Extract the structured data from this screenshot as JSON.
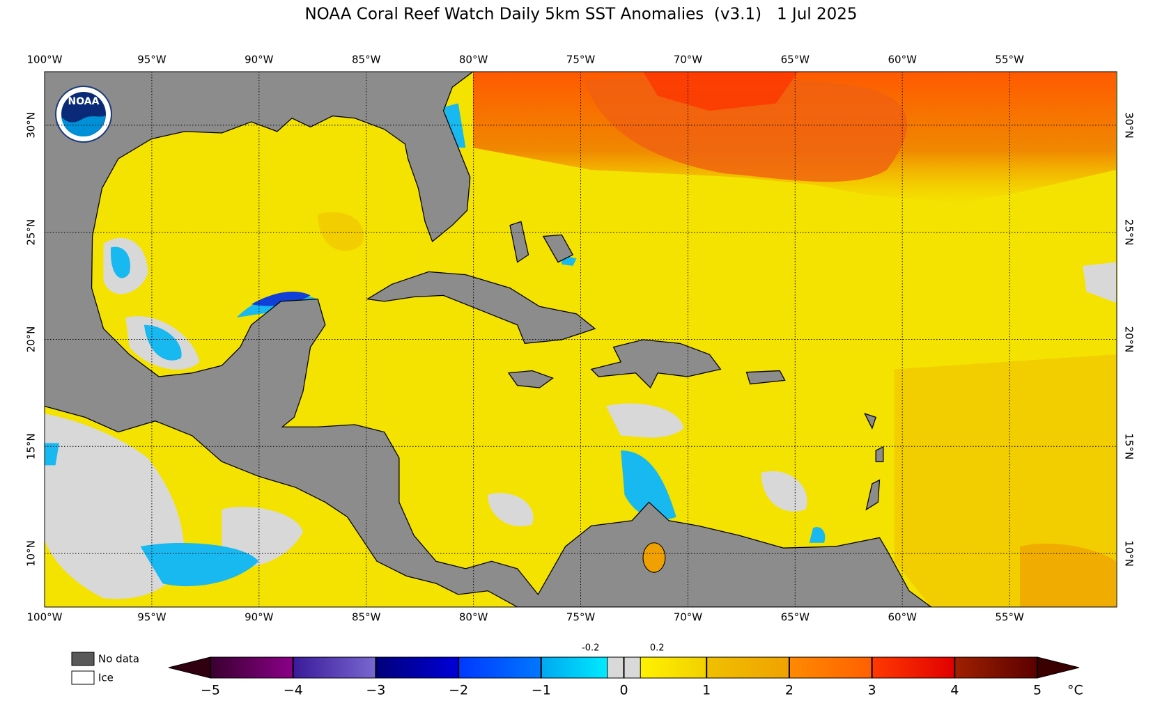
{
  "chart_data": {
    "type": "map",
    "title": "NOAA Coral Reef Watch Daily 5km SST Anomalies  (v3.1)   1 Jul 2025",
    "xlim": [
      -100,
      -50
    ],
    "ylim": [
      7.5,
      32.5
    ],
    "xticks": [
      {
        "value": -100,
        "label": "100°W"
      },
      {
        "value": -95,
        "label": "95°W"
      },
      {
        "value": -90,
        "label": "90°W"
      },
      {
        "value": -85,
        "label": "85°W"
      },
      {
        "value": -80,
        "label": "80°W"
      },
      {
        "value": -75,
        "label": "75°W"
      },
      {
        "value": -70,
        "label": "70°W"
      },
      {
        "value": -65,
        "label": "65°W"
      },
      {
        "value": -60,
        "label": "60°W"
      },
      {
        "value": -55,
        "label": "55°W"
      }
    ],
    "yticks": [
      {
        "value": 10,
        "label": "10°N"
      },
      {
        "value": 15,
        "label": "15°N"
      },
      {
        "value": 20,
        "label": "20°N"
      },
      {
        "value": 25,
        "label": "25°N"
      },
      {
        "value": 30,
        "label": "30°N"
      }
    ],
    "grid": true,
    "logo": "NOAA",
    "legend": {
      "labels": [
        "No data",
        "Ice"
      ],
      "colors": [
        "#595959",
        "#ffffff"
      ]
    },
    "colorbar": {
      "bins": [
        -5,
        -4,
        -3,
        -2,
        -1,
        -0.2,
        0,
        0.2,
        1,
        2,
        3,
        4,
        5
      ],
      "colors": [
        [
          "#3a0030",
          "#8a0088"
        ],
        [
          "#3a1a9a",
          "#7868d0"
        ],
        [
          "#00007a",
          "#0000d8"
        ],
        [
          "#0038ff",
          "#0078ff"
        ],
        [
          "#00a8f0",
          "#00eaff"
        ],
        [
          "#d9d9d9",
          "#d9d9d9"
        ],
        [
          "#d9d9d9",
          "#d9d9d9"
        ],
        [
          "#fff200",
          "#f2d000"
        ],
        [
          "#f0c000",
          "#f0a200"
        ],
        [
          "#ff8a00",
          "#ff6000"
        ],
        [
          "#ff3a00",
          "#e00000"
        ],
        [
          "#a02000",
          "#5a0000"
        ]
      ],
      "extend_colors": [
        "#300010",
        "#3a0000"
      ],
      "ticks": [
        {
          "value": -5,
          "label": "−5"
        },
        {
          "value": -4,
          "label": "−4"
        },
        {
          "value": -3,
          "label": "−3"
        },
        {
          "value": -2,
          "label": "−2"
        },
        {
          "value": -1,
          "label": "−1"
        },
        0,
        1,
        2,
        3,
        4,
        5
      ],
      "minor_ticks": [
        -0.2,
        0.2
      ],
      "unit": "°C"
    }
  }
}
